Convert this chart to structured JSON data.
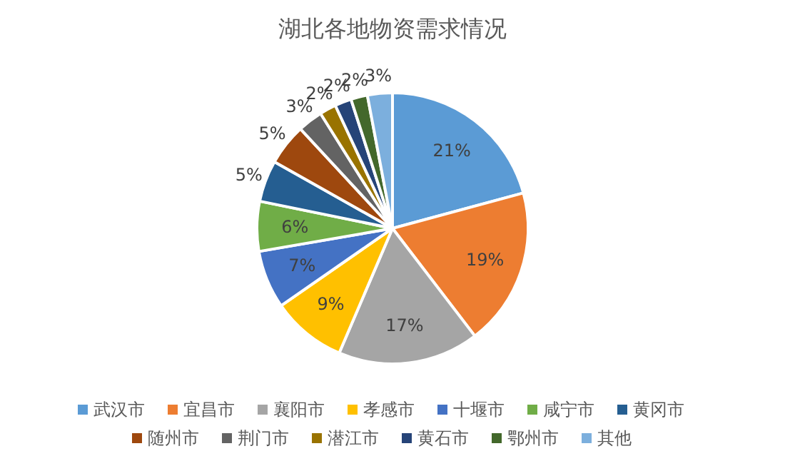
{
  "chart_data": {
    "type": "pie",
    "title": "湖北各地物资需求情况",
    "categories": [
      "武汉市",
      "宜昌市",
      "襄阳市",
      "孝感市",
      "十堰市",
      "咸宁市",
      "黄冈市",
      "随州市",
      "荆门市",
      "潜江市",
      "黄石市",
      "鄂州市",
      "其他"
    ],
    "values": [
      21,
      19,
      17,
      9,
      7,
      6,
      5,
      5,
      3,
      2,
      2,
      2,
      3
    ],
    "colors": [
      "#5b9bd5",
      "#ed7d31",
      "#a5a5a5",
      "#ffc000",
      "#4472c4",
      "#70ad47",
      "#255e91",
      "#9e480e",
      "#636363",
      "#997300",
      "#264478",
      "#43682b",
      "#7cafdd"
    ],
    "value_labels": [
      "21%",
      "19%",
      "17%",
      "9%",
      "7%",
      "6%",
      "5%",
      "5%",
      "3%",
      "2%",
      "2%",
      "2%",
      "3%"
    ],
    "legend": "bottom"
  }
}
